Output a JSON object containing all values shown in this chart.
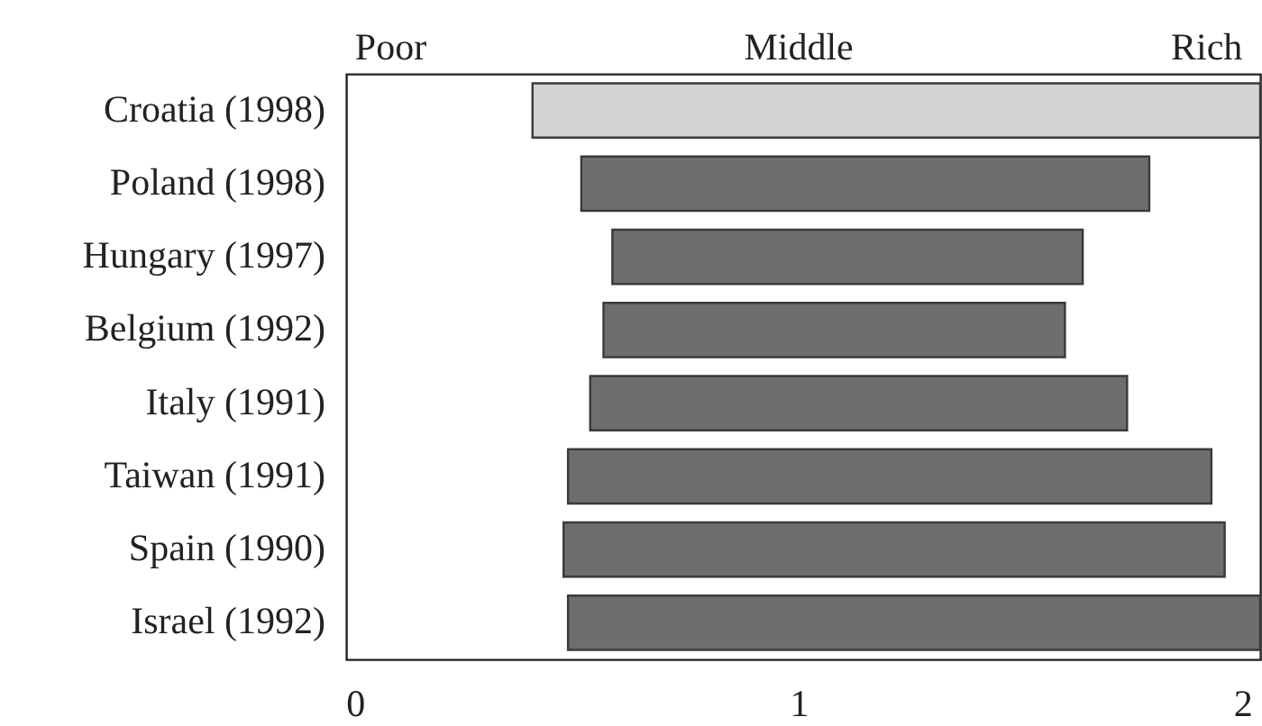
{
  "chart_data": {
    "type": "bar",
    "orientation": "horizontal",
    "categories": [
      "Croatia (1998)",
      "Poland (1998)",
      "Hungary (1997)",
      "Belgium (1992)",
      "Italy (1991)",
      "Taiwan (1991)",
      "Spain (1990)",
      "Israel (1992)"
    ],
    "base": [
      0.4,
      0.51,
      0.58,
      0.56,
      0.53,
      0.48,
      0.47,
      0.48
    ],
    "values": [
      1.64,
      1.28,
      1.06,
      1.04,
      1.21,
      1.45,
      1.49,
      1.56
    ],
    "colors": [
      "#d1d3d4",
      "#6d6e70",
      "#6d6e70",
      "#6d6e70",
      "#6d6e70",
      "#6d6e70",
      "#6d6e70",
      "#6d6e70"
    ],
    "xlim": [
      -0.02,
      2.04
    ],
    "xticks": [
      0,
      1,
      2
    ],
    "annotations": [
      "Poor",
      "Middle",
      "Rich"
    ],
    "grid": false
  }
}
